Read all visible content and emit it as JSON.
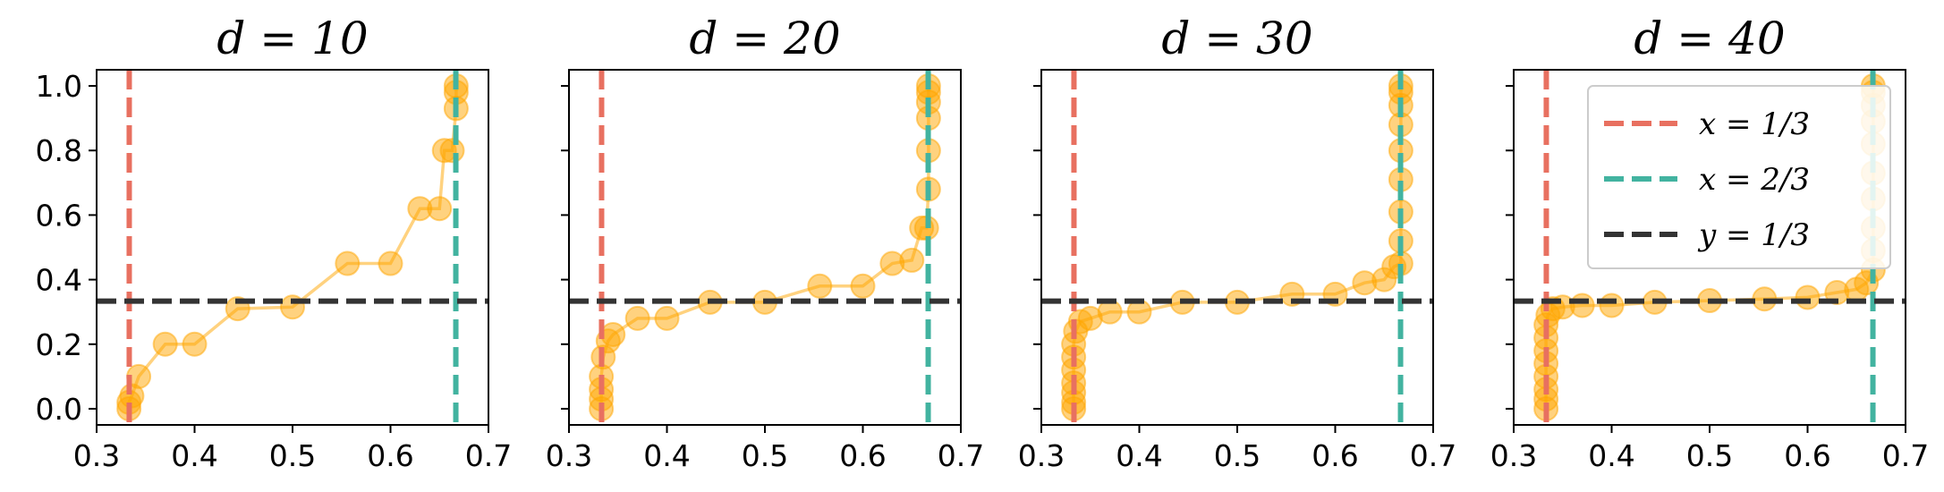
{
  "chart_data": [
    {
      "type": "line",
      "title": "d = 10",
      "xlabel": "",
      "ylabel": "",
      "xlim": [
        0.3,
        0.7
      ],
      "ylim": [
        -0.05,
        1.05
      ],
      "xticks": [
        "0.3",
        "0.4",
        "0.5",
        "0.6",
        "0.7"
      ],
      "yticks": [
        "0.0",
        "0.2",
        "0.4",
        "0.6",
        "0.8",
        "1.0"
      ],
      "y_ticklabels_shown": true,
      "series": [
        {
          "color": "#ffa500",
          "points": [
            [
              0.333,
              0.0
            ],
            [
              0.333,
              0.02
            ],
            [
              0.336,
              0.04
            ],
            [
              0.343,
              0.1
            ],
            [
              0.37,
              0.2
            ],
            [
              0.4,
              0.2
            ],
            [
              0.444,
              0.31
            ],
            [
              0.5,
              0.315
            ],
            [
              0.556,
              0.45
            ],
            [
              0.6,
              0.45
            ],
            [
              0.63,
              0.62
            ],
            [
              0.65,
              0.62
            ],
            [
              0.655,
              0.8
            ],
            [
              0.663,
              0.8
            ],
            [
              0.667,
              0.93
            ],
            [
              0.667,
              0.98
            ],
            [
              0.667,
              1.0
            ]
          ]
        }
      ],
      "reference_lines": [
        {
          "orientation": "vertical",
          "value": 0.3333,
          "color": "#e87060",
          "style": "dashed",
          "label": "x = 1/3"
        },
        {
          "orientation": "vertical",
          "value": 0.6667,
          "color": "#42b3a0",
          "style": "dashed",
          "label": "x = 2/3"
        },
        {
          "orientation": "horizontal",
          "value": 0.3333,
          "color": "#333333",
          "style": "dashed",
          "label": "y = 1/3"
        }
      ],
      "legend": null
    },
    {
      "type": "line",
      "title": "d = 20",
      "xlabel": "",
      "ylabel": "",
      "xlim": [
        0.3,
        0.7
      ],
      "ylim": [
        -0.05,
        1.05
      ],
      "xticks": [
        "0.3",
        "0.4",
        "0.5",
        "0.6",
        "0.7"
      ],
      "yticks": [
        "0.0",
        "0.2",
        "0.4",
        "0.6",
        "0.8",
        "1.0"
      ],
      "y_ticklabels_shown": false,
      "series": [
        {
          "color": "#ffa500",
          "points": [
            [
              0.333,
              0.0
            ],
            [
              0.333,
              0.03
            ],
            [
              0.333,
              0.06
            ],
            [
              0.333,
              0.1
            ],
            [
              0.335,
              0.16
            ],
            [
              0.34,
              0.21
            ],
            [
              0.345,
              0.23
            ],
            [
              0.37,
              0.28
            ],
            [
              0.4,
              0.28
            ],
            [
              0.444,
              0.33
            ],
            [
              0.5,
              0.33
            ],
            [
              0.556,
              0.38
            ],
            [
              0.6,
              0.38
            ],
            [
              0.63,
              0.45
            ],
            [
              0.65,
              0.46
            ],
            [
              0.66,
              0.56
            ],
            [
              0.665,
              0.56
            ],
            [
              0.667,
              0.68
            ],
            [
              0.667,
              0.8
            ],
            [
              0.667,
              0.9
            ],
            [
              0.667,
              0.95
            ],
            [
              0.667,
              0.98
            ],
            [
              0.667,
              1.0
            ]
          ]
        }
      ],
      "reference_lines": [
        {
          "orientation": "vertical",
          "value": 0.3333,
          "color": "#e87060",
          "style": "dashed",
          "label": "x = 1/3"
        },
        {
          "orientation": "vertical",
          "value": 0.6667,
          "color": "#42b3a0",
          "style": "dashed",
          "label": "x = 2/3"
        },
        {
          "orientation": "horizontal",
          "value": 0.3333,
          "color": "#333333",
          "style": "dashed",
          "label": "y = 1/3"
        }
      ],
      "legend": null
    },
    {
      "type": "line",
      "title": "d = 30",
      "xlabel": "",
      "ylabel": "",
      "xlim": [
        0.3,
        0.7
      ],
      "ylim": [
        -0.05,
        1.05
      ],
      "xticks": [
        "0.3",
        "0.4",
        "0.5",
        "0.6",
        "0.7"
      ],
      "yticks": [
        "0.0",
        "0.2",
        "0.4",
        "0.6",
        "0.8",
        "1.0"
      ],
      "y_ticklabels_shown": false,
      "series": [
        {
          "color": "#ffa500",
          "points": [
            [
              0.333,
              0.0
            ],
            [
              0.333,
              0.02
            ],
            [
              0.333,
              0.05
            ],
            [
              0.333,
              0.08
            ],
            [
              0.333,
              0.12
            ],
            [
              0.333,
              0.16
            ],
            [
              0.333,
              0.2
            ],
            [
              0.335,
              0.24
            ],
            [
              0.34,
              0.27
            ],
            [
              0.35,
              0.28
            ],
            [
              0.37,
              0.3
            ],
            [
              0.4,
              0.3
            ],
            [
              0.444,
              0.33
            ],
            [
              0.5,
              0.33
            ],
            [
              0.556,
              0.355
            ],
            [
              0.6,
              0.355
            ],
            [
              0.63,
              0.39
            ],
            [
              0.65,
              0.4
            ],
            [
              0.66,
              0.44
            ],
            [
              0.667,
              0.45
            ],
            [
              0.667,
              0.52
            ],
            [
              0.667,
              0.61
            ],
            [
              0.667,
              0.71
            ],
            [
              0.667,
              0.8
            ],
            [
              0.667,
              0.88
            ],
            [
              0.667,
              0.94
            ],
            [
              0.667,
              0.98
            ],
            [
              0.667,
              1.0
            ]
          ]
        }
      ],
      "reference_lines": [
        {
          "orientation": "vertical",
          "value": 0.3333,
          "color": "#e87060",
          "style": "dashed",
          "label": "x = 1/3"
        },
        {
          "orientation": "vertical",
          "value": 0.6667,
          "color": "#42b3a0",
          "style": "dashed",
          "label": "x = 2/3"
        },
        {
          "orientation": "horizontal",
          "value": 0.3333,
          "color": "#333333",
          "style": "dashed",
          "label": "y = 1/3"
        }
      ],
      "legend": null
    },
    {
      "type": "line",
      "title": "d = 40",
      "xlabel": "",
      "ylabel": "",
      "xlim": [
        0.3,
        0.7
      ],
      "ylim": [
        -0.05,
        1.05
      ],
      "xticks": [
        "0.3",
        "0.4",
        "0.5",
        "0.6",
        "0.7"
      ],
      "yticks": [
        "0.0",
        "0.2",
        "0.4",
        "0.6",
        "0.8",
        "1.0"
      ],
      "y_ticklabels_shown": false,
      "series": [
        {
          "color": "#ffa500",
          "points": [
            [
              0.333,
              0.0
            ],
            [
              0.333,
              0.03
            ],
            [
              0.333,
              0.06
            ],
            [
              0.333,
              0.1
            ],
            [
              0.333,
              0.14
            ],
            [
              0.333,
              0.18
            ],
            [
              0.333,
              0.22
            ],
            [
              0.333,
              0.26
            ],
            [
              0.335,
              0.29
            ],
            [
              0.34,
              0.31
            ],
            [
              0.35,
              0.315
            ],
            [
              0.37,
              0.32
            ],
            [
              0.4,
              0.32
            ],
            [
              0.444,
              0.33
            ],
            [
              0.5,
              0.335
            ],
            [
              0.556,
              0.34
            ],
            [
              0.6,
              0.345
            ],
            [
              0.63,
              0.36
            ],
            [
              0.65,
              0.37
            ],
            [
              0.66,
              0.39
            ],
            [
              0.667,
              0.43
            ],
            [
              0.667,
              0.49
            ],
            [
              0.667,
              0.56
            ],
            [
              0.667,
              0.65
            ],
            [
              0.667,
              0.73
            ],
            [
              0.667,
              0.82
            ],
            [
              0.667,
              0.89
            ],
            [
              0.667,
              0.94
            ],
            [
              0.667,
              0.98
            ],
            [
              0.667,
              1.0
            ]
          ]
        }
      ],
      "reference_lines": [
        {
          "orientation": "vertical",
          "value": 0.3333,
          "color": "#e87060",
          "style": "dashed",
          "label": "x = 1/3"
        },
        {
          "orientation": "vertical",
          "value": 0.6667,
          "color": "#42b3a0",
          "style": "dashed",
          "label": "x = 2/3"
        },
        {
          "orientation": "horizontal",
          "value": 0.3333,
          "color": "#333333",
          "style": "dashed",
          "label": "y = 1/3"
        }
      ],
      "legend": {
        "placement": "upper-right",
        "entries": [
          {
            "label": "x = 1/3",
            "color": "#e87060"
          },
          {
            "label": "x = 2/3",
            "color": "#42b3a0"
          },
          {
            "label": "y = 1/3",
            "color": "#333333"
          }
        ]
      }
    }
  ]
}
